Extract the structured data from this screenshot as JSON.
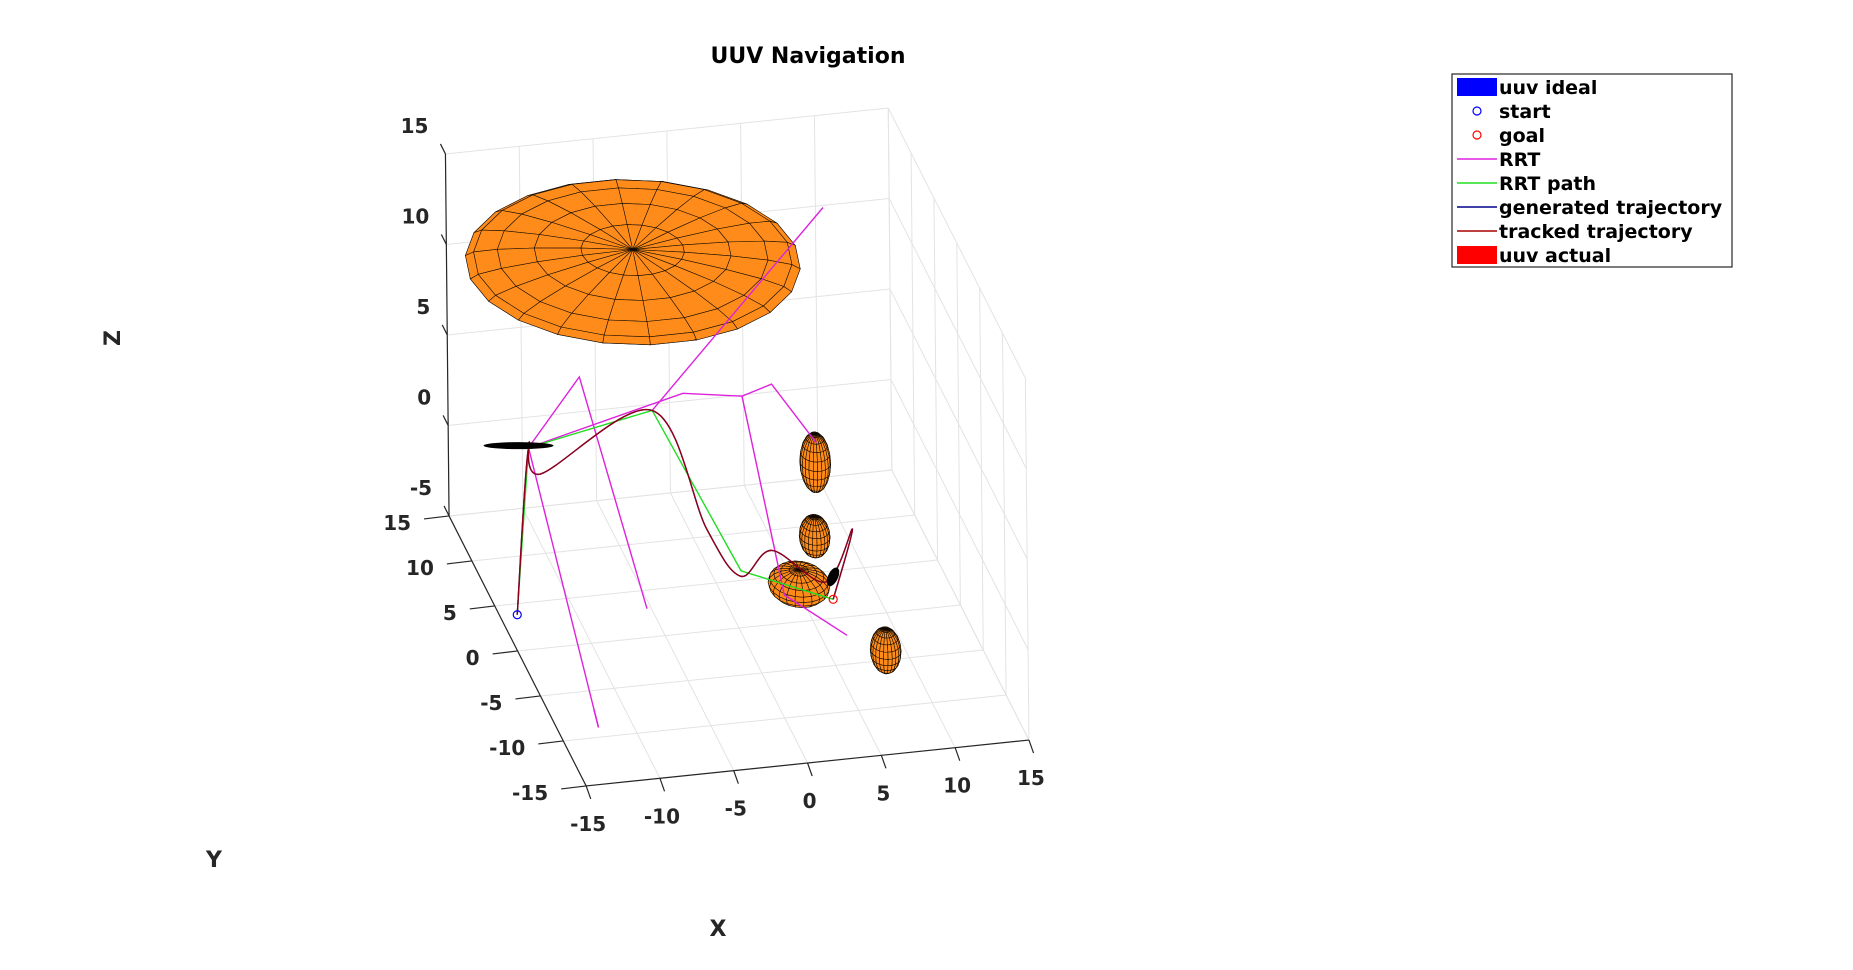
{
  "chart_data": {
    "type": "line",
    "title": "UUV Navigation",
    "xlabel": "X",
    "ylabel": "Y",
    "zlabel": "Z",
    "xlim": [
      -15,
      15
    ],
    "ylim": [
      -15,
      15
    ],
    "zlim": [
      -5,
      15
    ],
    "xticks": [
      "-15",
      "-10",
      "-5",
      "0",
      "5",
      "10",
      "15"
    ],
    "yticks": [
      "-15",
      "-10",
      "-5",
      "0",
      "5",
      "10",
      "15"
    ],
    "zticks": [
      "-5",
      "0",
      "5",
      "10",
      "15"
    ],
    "grid": true,
    "legend_position": "top-right",
    "colors": {
      "uuv_ideal": "#0000ff",
      "start": "#0000ff",
      "goal": "#ff0000",
      "rrt": "#dd22dd",
      "rrt_path": "#22dd22",
      "generated_trajectory": "#000088",
      "tracked_trajectory": "#aa0000",
      "uuv_actual": "#ff0000",
      "obstacle": "#ff8c1a"
    },
    "legend": [
      {
        "key": "uuv_ideal",
        "label": "uuv ideal",
        "marker": "patch"
      },
      {
        "key": "start",
        "label": "start",
        "marker": "circle"
      },
      {
        "key": "goal",
        "label": "goal",
        "marker": "circle"
      },
      {
        "key": "rrt",
        "label": "RRT",
        "marker": "line"
      },
      {
        "key": "rrt_path",
        "label": "RRT path",
        "marker": "line"
      },
      {
        "key": "generated_trajectory",
        "label": "generated trajectory",
        "marker": "line"
      },
      {
        "key": "tracked_trajectory",
        "label": "tracked trajectory",
        "marker": "line"
      },
      {
        "key": "uuv_actual",
        "label": "uuv actual",
        "marker": "patch"
      }
    ],
    "series": [
      {
        "name": "RRT",
        "segments": [
          [
            [
              -12,
              7,
              2.5
            ],
            [
              -12,
              -8,
              -5.5
            ]
          ],
          [
            [
              -12,
              7,
              2.5
            ],
            [
              -7,
              12,
              3.5
            ],
            [
              -5,
              4,
              -5.5
            ]
          ],
          [
            [
              -12,
              7,
              2.5
            ],
            [
              0,
              12,
              2
            ],
            [
              4,
              12,
              1.5
            ],
            [
              6,
              12,
              2
            ],
            [
              9,
              12,
              -1.5
            ]
          ],
          [
            [
              -3,
              9,
              2.8
            ],
            [
              9,
              10,
              12.5
            ]
          ],
          [
            [
              4,
              12,
              1.5
            ],
            [
              4,
              3,
              -5
            ],
            [
              7,
              -1,
              -5.5
            ]
          ],
          [
            [
              -12,
              -7,
              -5
            ],
            [
              -12,
              -8,
              -5.5
            ]
          ]
        ]
      },
      {
        "name": "RRT path",
        "points": [
          [
            -15,
            0,
            -3
          ],
          [
            -12,
            7,
            2.5
          ],
          [
            -3,
            9,
            2.8
          ],
          [
            2,
            6,
            -5
          ],
          [
            7,
            2,
            -5
          ]
        ]
      },
      {
        "name": "generated trajectory",
        "points": [
          [
            -15,
            0,
            -3
          ],
          [
            -12,
            7,
            2.5
          ],
          [
            -11.5,
            6,
            1.5
          ],
          [
            -3,
            9,
            2.8
          ],
          [
            0,
            7,
            -3
          ],
          [
            1.5,
            4.5,
            -4.5
          ],
          [
            3.5,
            4,
            -3
          ],
          [
            6.5,
            2,
            -4
          ],
          [
            8.5,
            2.5,
            -1.5
          ],
          [
            7,
            2,
            -5
          ]
        ]
      },
      {
        "name": "tracked trajectory",
        "points": [
          [
            -15,
            0,
            -3
          ],
          [
            -12,
            7,
            2.5
          ],
          [
            -11.5,
            6,
            1.5
          ],
          [
            -3,
            9,
            2.8
          ],
          [
            0,
            7,
            -3
          ],
          [
            1.5,
            4.5,
            -4.5
          ],
          [
            3.5,
            4,
            -3
          ],
          [
            6.5,
            2,
            -4
          ],
          [
            8.5,
            2.5,
            -1.5
          ],
          [
            7,
            2,
            -5
          ]
        ]
      }
    ],
    "start": [
      -15,
      0,
      -3
    ],
    "goal": [
      7,
      2,
      -5
    ],
    "obstacles": [
      {
        "shape": "ellipsoid",
        "center": [
          -3,
          13,
          9
        ],
        "radii": [
          11,
          9,
          0.7
        ]
      },
      {
        "shape": "ellipsoid",
        "center": [
          5,
          3,
          -4.5
        ],
        "radii": [
          2,
          2,
          0.8
        ]
      },
      {
        "shape": "ellipsoid",
        "center": [
          8,
          9,
          -1
        ],
        "radii": [
          1,
          1,
          1.6
        ]
      },
      {
        "shape": "ellipsoid",
        "center": [
          7,
          6,
          -3.5
        ],
        "radii": [
          1,
          1,
          1.1
        ]
      },
      {
        "shape": "ellipsoid",
        "center": [
          9,
          -3,
          -5.5
        ],
        "radii": [
          1,
          1,
          1.2
        ]
      }
    ]
  }
}
